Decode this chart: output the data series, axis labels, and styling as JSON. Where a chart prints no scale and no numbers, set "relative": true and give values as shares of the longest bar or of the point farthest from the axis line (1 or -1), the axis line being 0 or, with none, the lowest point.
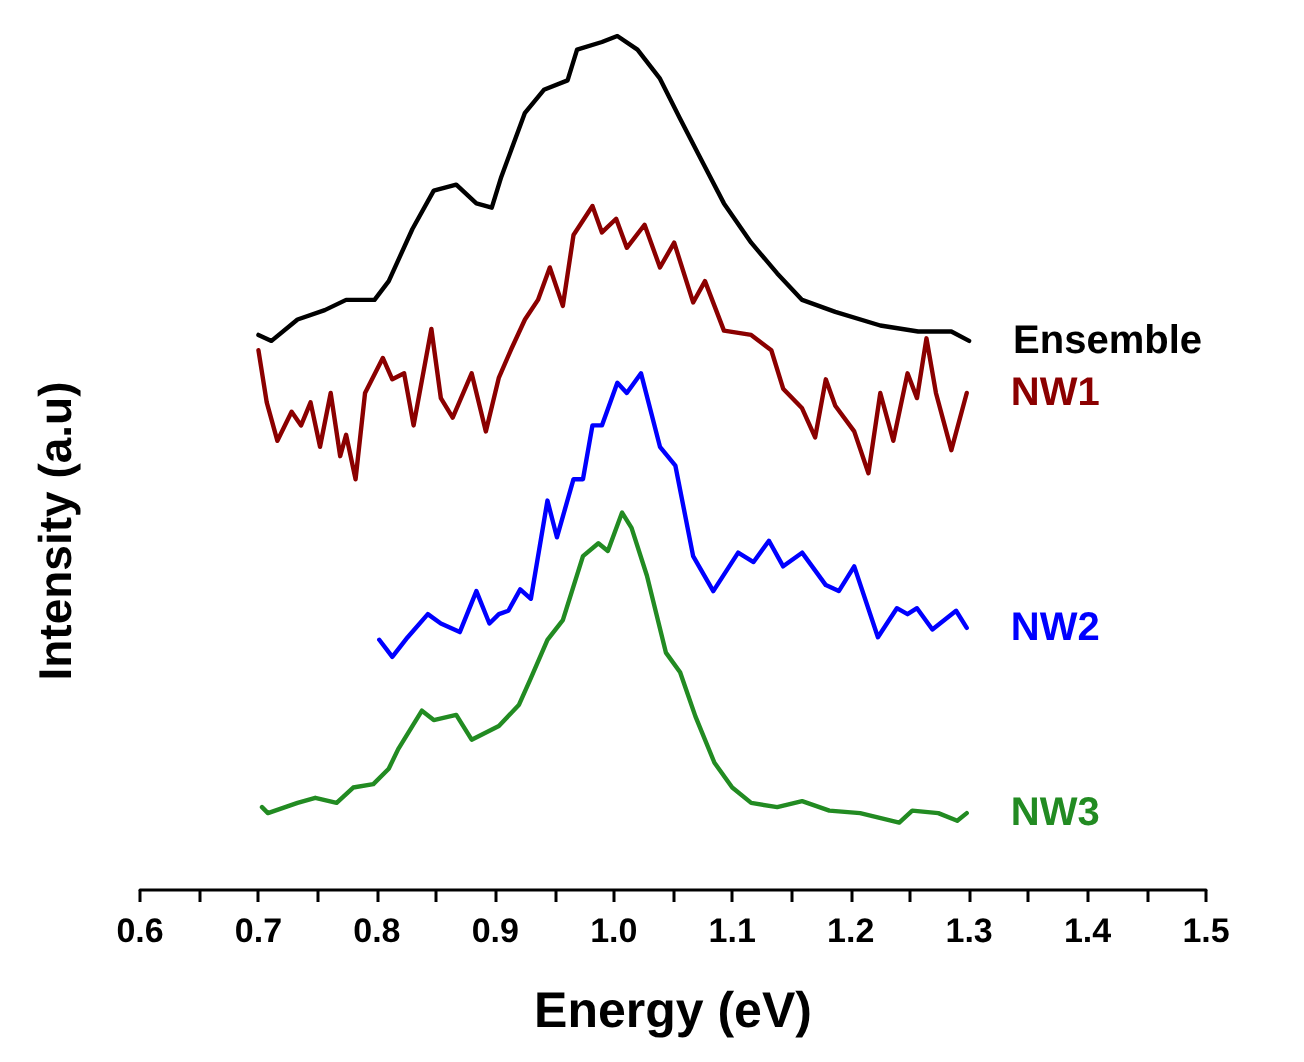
{
  "chart_data": {
    "type": "line",
    "xlabel": "Energy (eV)",
    "ylabel": "Intensity (a.u)",
    "relative": true,
    "grid": false,
    "legend": false,
    "marker": "none",
    "line_style": "solid",
    "xlim": [
      0.6,
      1.5
    ],
    "xticks": [
      0.6,
      {
        "value": 0.65,
        "label": null
      },
      0.7,
      {
        "value": 0.75,
        "label": null
      },
      0.8,
      {
        "value": 0.85,
        "label": null
      },
      0.9,
      {
        "value": 0.95,
        "label": null
      },
      {
        "value": 1.0,
        "label": "1.0"
      },
      {
        "value": 1.05,
        "label": null
      },
      1.1,
      {
        "value": 1.15,
        "label": null
      },
      1.2,
      {
        "value": 1.25,
        "label": null
      },
      1.3,
      {
        "value": 1.35,
        "label": null
      },
      1.4,
      {
        "value": 1.45,
        "label": null
      },
      1.5
    ],
    "series": [
      {
        "name": "Ensemble",
        "color": "#000000",
        "x": [
          0.7,
          0.711,
          0.733,
          0.756,
          0.774,
          0.798,
          0.81,
          0.83,
          0.848,
          0.867,
          0.884,
          0.897,
          0.905,
          0.925,
          0.941,
          0.961,
          0.969,
          0.99,
          1.003,
          1.02,
          1.039,
          1.056,
          1.072,
          1.093,
          1.116,
          1.138,
          1.159,
          1.187,
          1.225,
          1.257,
          1.285,
          1.3
        ],
        "values": [
          0.65,
          0.643,
          0.668,
          0.679,
          0.691,
          0.691,
          0.713,
          0.774,
          0.819,
          0.826,
          0.804,
          0.799,
          0.835,
          0.91,
          0.937,
          0.948,
          0.984,
          0.993,
          1,
          0.984,
          0.95,
          0.903,
          0.86,
          0.804,
          0.758,
          0.722,
          0.691,
          0.677,
          0.661,
          0.654,
          0.654,
          0.643
        ]
      },
      {
        "name": "NW1",
        "color": "#8b0000",
        "x": [
          0.7,
          0.707,
          0.716,
          0.728,
          0.736,
          0.744,
          0.752,
          0.761,
          0.769,
          0.774,
          0.782,
          0.79,
          0.805,
          0.813,
          0.823,
          0.831,
          0.846,
          0.854,
          0.864,
          0.88,
          0.892,
          0.903,
          0.913,
          0.925,
          0.936,
          0.946,
          0.957,
          0.966,
          0.982,
          0.99,
          1.002,
          1.011,
          1.026,
          1.039,
          1.051,
          1.067,
          1.077,
          1.093,
          1.116,
          1.133,
          1.143,
          1.159,
          1.17,
          1.179,
          1.187,
          1.203,
          1.215,
          1.225,
          1.236,
          1.248,
          1.256,
          1.264,
          1.272,
          1.285,
          1.298
        ],
        "values": [
          0.632,
          0.571,
          0.526,
          0.56,
          0.544,
          0.571,
          0.519,
          0.582,
          0.508,
          0.533,
          0.481,
          0.582,
          0.623,
          0.598,
          0.605,
          0.544,
          0.657,
          0.576,
          0.553,
          0.605,
          0.537,
          0.6,
          0.632,
          0.668,
          0.691,
          0.729,
          0.684,
          0.767,
          0.801,
          0.77,
          0.786,
          0.752,
          0.779,
          0.729,
          0.758,
          0.688,
          0.713,
          0.655,
          0.65,
          0.632,
          0.587,
          0.564,
          0.53,
          0.598,
          0.567,
          0.537,
          0.488,
          0.582,
          0.526,
          0.605,
          0.576,
          0.646,
          0.582,
          0.515,
          0.582
        ]
      },
      {
        "name": "NW2",
        "color": "#0000ff",
        "x": [
          0.802,
          0.813,
          0.826,
          0.843,
          0.854,
          0.87,
          0.884,
          0.895,
          0.903,
          0.911,
          0.921,
          0.93,
          0.944,
          0.952,
          0.966,
          0.974,
          0.982,
          0.99,
          1.003,
          1.011,
          1.023,
          1.039,
          1.052,
          1.067,
          1.084,
          1.105,
          1.118,
          1.131,
          1.143,
          1.159,
          1.179,
          1.19,
          1.203,
          1.223,
          1.239,
          1.248,
          1.256,
          1.269,
          1.289,
          1.298
        ],
        "values": [
          0.293,
          0.273,
          0.296,
          0.323,
          0.312,
          0.302,
          0.35,
          0.312,
          0.323,
          0.327,
          0.352,
          0.341,
          0.456,
          0.413,
          0.481,
          0.481,
          0.544,
          0.544,
          0.594,
          0.582,
          0.605,
          0.519,
          0.497,
          0.391,
          0.35,
          0.395,
          0.384,
          0.409,
          0.379,
          0.395,
          0.357,
          0.35,
          0.379,
          0.296,
          0.33,
          0.323,
          0.33,
          0.305,
          0.327,
          0.307
        ]
      },
      {
        "name": "NW3",
        "color": "#228b22",
        "x": [
          0.703,
          0.708,
          0.733,
          0.748,
          0.766,
          0.78,
          0.797,
          0.81,
          0.818,
          0.838,
          0.848,
          0.867,
          0.88,
          0.903,
          0.92,
          0.93,
          0.944,
          0.957,
          0.974,
          0.987,
          0.995,
          1.007,
          1.015,
          1.028,
          1.044,
          1.056,
          1.069,
          1.085,
          1.1,
          1.116,
          1.138,
          1.159,
          1.182,
          1.208,
          1.241,
          1.252,
          1.274,
          1.29,
          1.298
        ],
        "values": [
          0.097,
          0.09,
          0.102,
          0.108,
          0.102,
          0.12,
          0.124,
          0.142,
          0.165,
          0.21,
          0.199,
          0.205,
          0.176,
          0.192,
          0.217,
          0.248,
          0.293,
          0.316,
          0.391,
          0.406,
          0.397,
          0.442,
          0.424,
          0.368,
          0.278,
          0.255,
          0.203,
          0.149,
          0.12,
          0.102,
          0.097,
          0.104,
          0.093,
          0.09,
          0.079,
          0.093,
          0.09,
          0.081,
          0.09
        ]
      }
    ]
  }
}
